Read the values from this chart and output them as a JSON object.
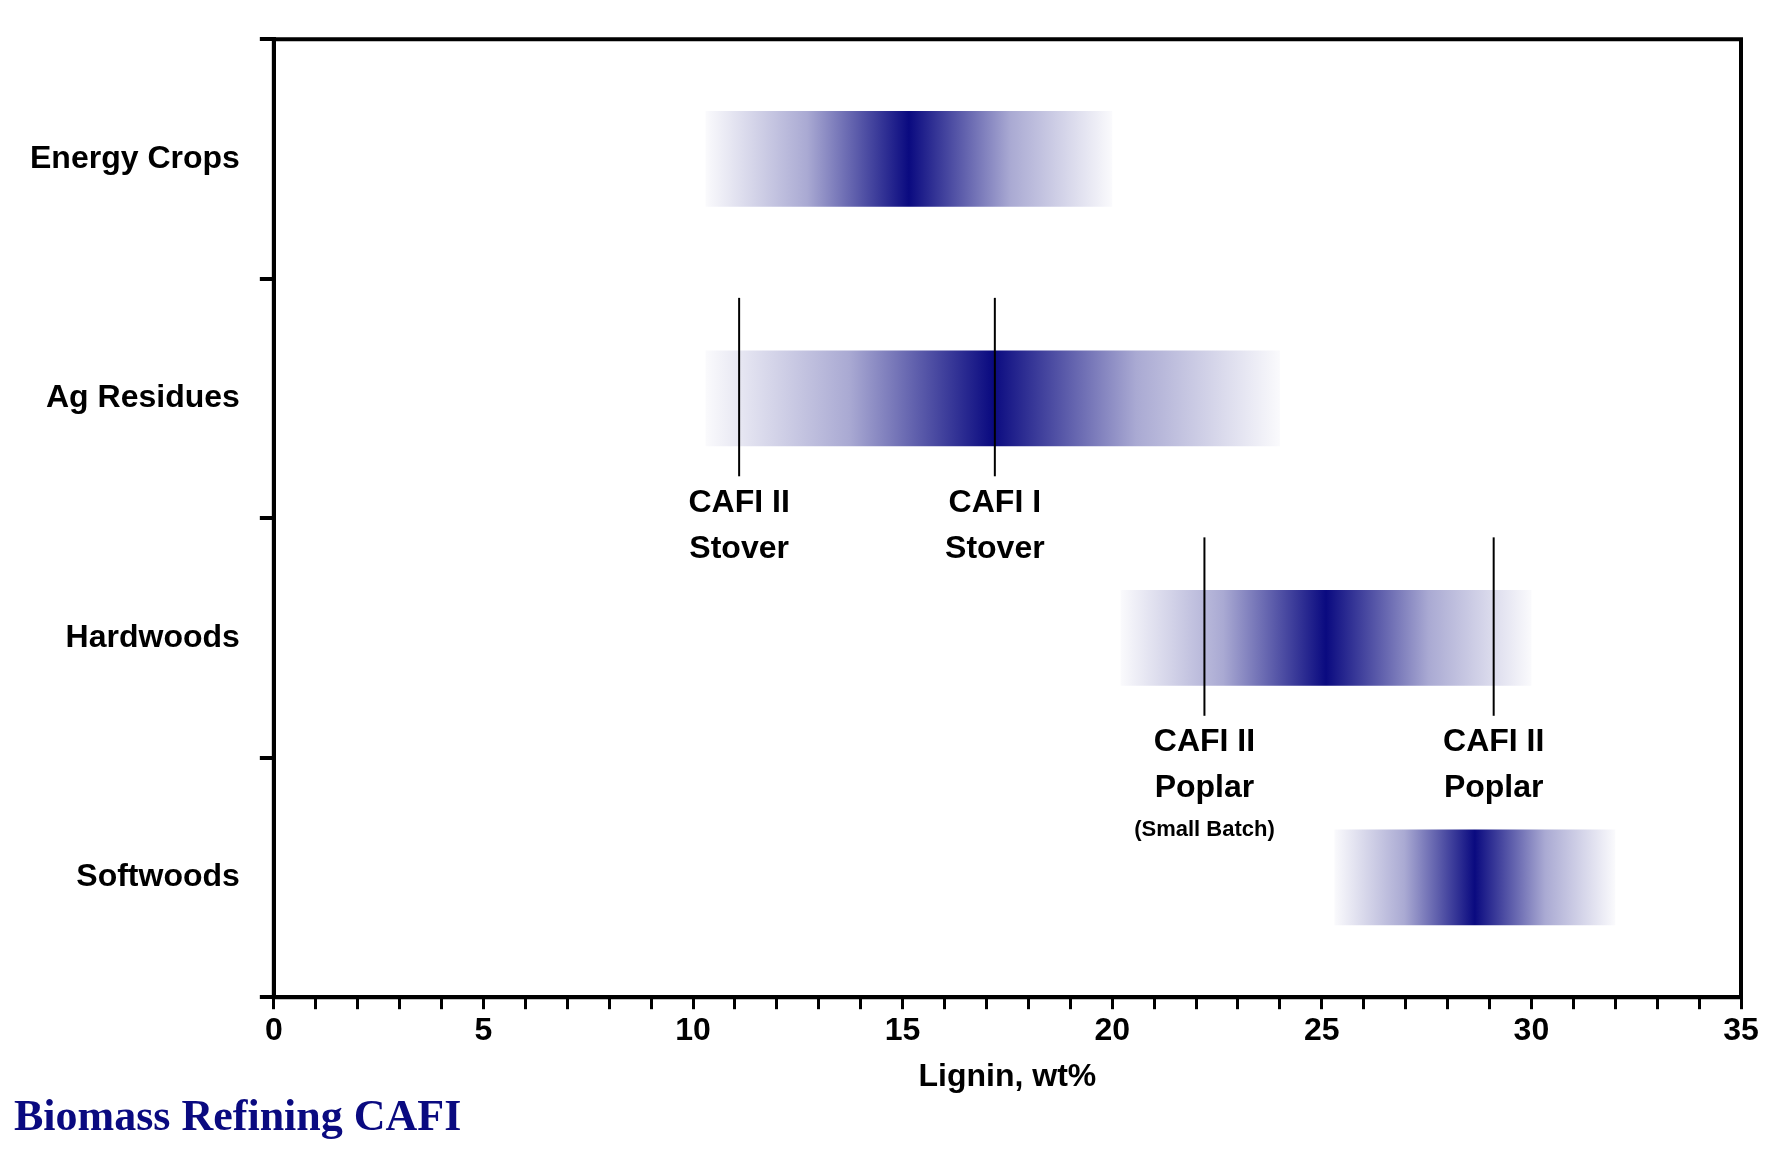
{
  "chart_data": {
    "type": "bar",
    "orientation": "horizontal",
    "xlabel": "Lignin, wt%",
    "categories": [
      "Energy Crops",
      "Ag Residues",
      "Hardwoods",
      "Softwoods"
    ],
    "base": [
      10.3,
      10.3,
      20.2,
      25.3
    ],
    "values": [
      9.7,
      13.7,
      9.8,
      6.7
    ],
    "color": "#0a0a80",
    "xlim": [
      0,
      35
    ],
    "xticks": [
      0,
      {
        "value": 1,
        "label": null
      },
      {
        "value": 2,
        "label": null
      },
      {
        "value": 3,
        "label": null
      },
      {
        "value": 4,
        "label": null
      },
      5,
      {
        "value": 6,
        "label": null
      },
      {
        "value": 7,
        "label": null
      },
      {
        "value": 8,
        "label": null
      },
      {
        "value": 9,
        "label": null
      },
      10,
      {
        "value": 11,
        "label": null
      },
      {
        "value": 12,
        "label": null
      },
      {
        "value": 13,
        "label": null
      },
      {
        "value": 14,
        "label": null
      },
      15,
      {
        "value": 16,
        "label": null
      },
      {
        "value": 17,
        "label": null
      },
      {
        "value": 18,
        "label": null
      },
      {
        "value": 19,
        "label": null
      },
      20,
      {
        "value": 21,
        "label": null
      },
      {
        "value": 22,
        "label": null
      },
      {
        "value": 23,
        "label": null
      },
      {
        "value": 24,
        "label": null
      },
      25,
      {
        "value": 26,
        "label": null
      },
      {
        "value": 27,
        "label": null
      },
      {
        "value": 28,
        "label": null
      },
      {
        "value": 29,
        "label": null
      },
      30,
      {
        "value": 31,
        "label": null
      },
      {
        "value": 32,
        "label": null
      },
      {
        "value": 33,
        "label": null
      },
      {
        "value": 34,
        "label": null
      },
      35
    ],
    "grid": false,
    "ref_lines": [
      {
        "axis": "x",
        "value": 11.1,
        "label": "CAFI II\nStover"
      },
      {
        "axis": "x",
        "value": 17.2,
        "label": "CAFI I\nStover"
      },
      {
        "axis": "x",
        "value": 22.2,
        "label": "CAFI II\nPoplar\n(Small Batch)"
      },
      {
        "axis": "x",
        "value": 29.1,
        "label": "CAFI II\nPoplar"
      }
    ],
    "annotations": [
      "Biomass Refining CAFI"
    ]
  }
}
